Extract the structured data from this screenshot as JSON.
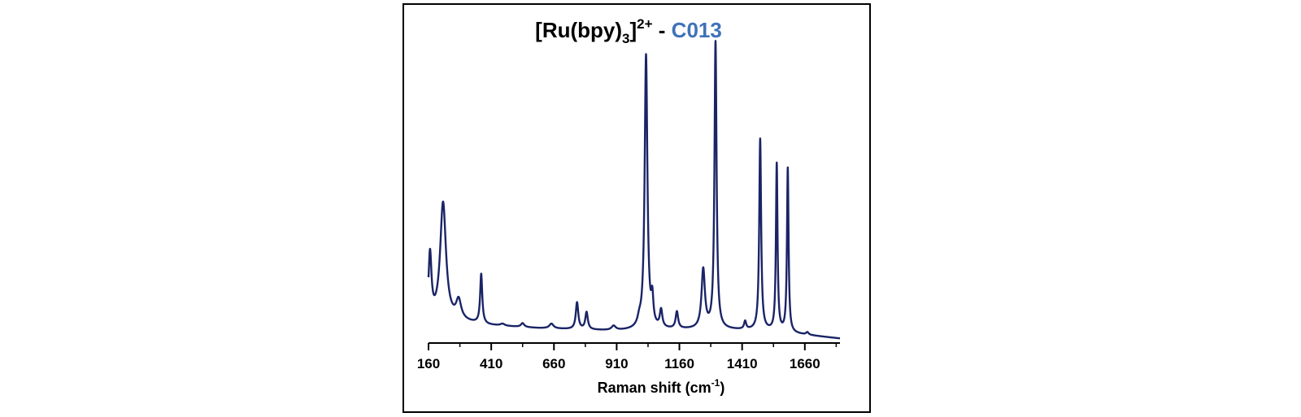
{
  "chart_data": {
    "type": "line",
    "title": {
      "prefix": "[Ru(bpy)",
      "subscript": "3",
      "bracket": "]",
      "superscript": "2+",
      "separator": " - ",
      "sample": "C013"
    },
    "xlabel": {
      "main": "Raman shift (cm",
      "superscript": "-1",
      "suffix": ")"
    },
    "ylabel": "",
    "x_ticks": [
      160,
      410,
      660,
      910,
      1160,
      1410,
      1660
    ],
    "xlim": [
      160,
      1800
    ],
    "ylim": [
      0,
      100
    ],
    "show_y_axis": false,
    "grid": false,
    "legend": "none",
    "colors": {
      "line": "#1a2466",
      "title_accent": "#3f72b8",
      "frame": "#000000"
    },
    "series": [
      {
        "baseline": [
          [
            160,
            7.0
          ],
          [
            300,
            6.5
          ],
          [
            400,
            5.5
          ],
          [
            600,
            4.6
          ],
          [
            900,
            3.8
          ],
          [
            1100,
            4.2
          ],
          [
            1300,
            4.2
          ],
          [
            1500,
            3.8
          ],
          [
            1700,
            2.2
          ],
          [
            1800,
            1.4
          ]
        ],
        "peaks": [
          {
            "x": 166,
            "height": 20.0,
            "width": 7
          },
          {
            "x": 218,
            "height": 37.0,
            "width": 14
          },
          {
            "x": 280,
            "height": 6.0,
            "width": 12
          },
          {
            "x": 370,
            "height": 15.5,
            "width": 5
          },
          {
            "x": 455,
            "height": 0.6,
            "width": 10
          },
          {
            "x": 535,
            "height": 1.2,
            "width": 8
          },
          {
            "x": 650,
            "height": 1.5,
            "width": 10
          },
          {
            "x": 752,
            "height": 8.4,
            "width": 6
          },
          {
            "x": 790,
            "height": 5.4,
            "width": 6
          },
          {
            "x": 898,
            "height": 1.4,
            "width": 10
          },
          {
            "x": 1000,
            "height": 2.0,
            "width": 8
          },
          {
            "x": 1027,
            "height": 86.0,
            "width": 6.5
          },
          {
            "x": 1052,
            "height": 8.0,
            "width": 5
          },
          {
            "x": 1087,
            "height": 5.5,
            "width": 6
          },
          {
            "x": 1150,
            "height": 5.3,
            "width": 6
          },
          {
            "x": 1255,
            "height": 18.5,
            "width": 8
          },
          {
            "x": 1304,
            "height": 90.0,
            "width": 5
          },
          {
            "x": 1422,
            "height": 2.5,
            "width": 5
          },
          {
            "x": 1482,
            "height": 60.0,
            "width": 4.5
          },
          {
            "x": 1548,
            "height": 52.5,
            "width": 3.8
          },
          {
            "x": 1592,
            "height": 51.5,
            "width": 3.8
          },
          {
            "x": 1670,
            "height": 0.8,
            "width": 6
          }
        ]
      }
    ]
  }
}
